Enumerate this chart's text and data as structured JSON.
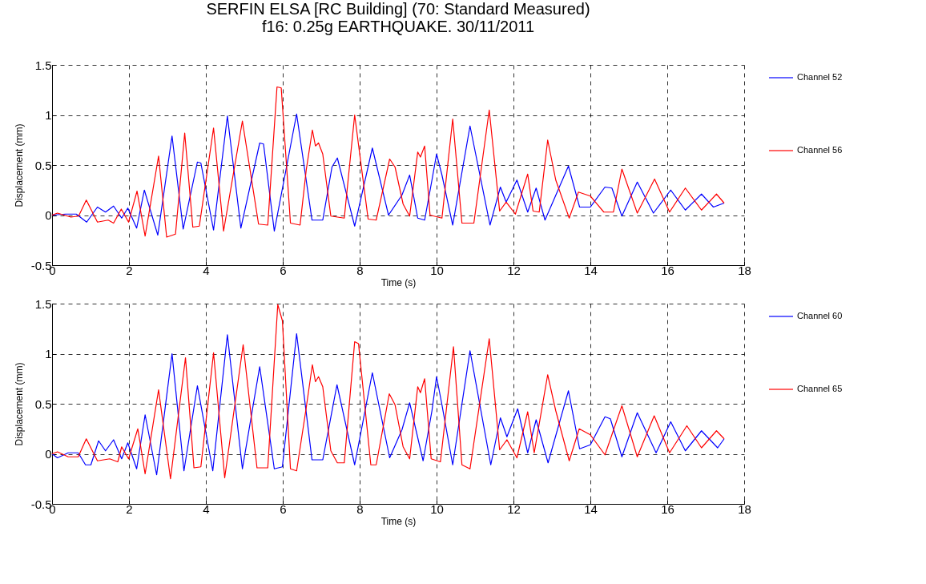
{
  "chart_data": [
    {
      "type": "line",
      "title": "SERFIN ELSA [RC Building] (70: Standard Measured)",
      "subtitle": "f16: 0.25g EARTHQUAKE. 30/11/2011",
      "xlabel": "Time (s)",
      "ylabel": "Displacement (mm)",
      "xlim": [
        0,
        18
      ],
      "xticks": [
        0,
        2,
        4,
        6,
        8,
        10,
        12,
        14,
        16,
        18
      ],
      "ylim": [
        -0.5,
        1.5
      ],
      "yticks": [
        -0.5,
        0,
        0.5,
        1,
        1.5
      ],
      "grid": true,
      "legend": "right",
      "line_style": "solid",
      "series": [
        {
          "name": "Channel 52",
          "color": "#0000ff",
          "x": [
            0,
            0.35,
            0.63,
            0.9,
            1.18,
            1.39,
            1.6,
            1.81,
            1.97,
            2.2,
            2.4,
            2.75,
            3.12,
            3.41,
            3.78,
            3.87,
            4.2,
            4.56,
            4.91,
            5.4,
            5.5,
            5.78,
            6.36,
            6.76,
            7.04,
            7.28,
            7.42,
            7.87,
            8.33,
            8.75,
            9.1,
            9.3,
            9.51,
            9.69,
            9.88,
            10,
            10.14,
            10.42,
            10.87,
            11.39,
            11.66,
            11.81,
            12.09,
            12.37,
            12.59,
            12.82,
            13.43,
            13.72,
            14,
            14.38,
            14.56,
            14.82,
            15.22,
            15.64,
            16.09,
            16.47,
            16.89,
            17.2,
            17.48
          ],
          "values": [
            0,
            0.01,
            0.01,
            -0.07,
            0.08,
            0.03,
            0.09,
            -0.03,
            0.07,
            -0.13,
            0.25,
            -0.2,
            0.79,
            -0.14,
            0.53,
            0.52,
            -0.15,
            0.99,
            -0.13,
            0.72,
            0.71,
            -0.16,
            1.01,
            -0.05,
            -0.05,
            0.48,
            0.57,
            -0.11,
            0.67,
            0,
            0.2,
            0.4,
            -0.03,
            -0.05,
            0.35,
            0.61,
            0.4,
            -0.1,
            0.89,
            -0.1,
            0.28,
            0.13,
            0.35,
            0.03,
            0.27,
            -0.05,
            0.49,
            0.08,
            0.08,
            0.28,
            0.27,
            -0.01,
            0.33,
            0.02,
            0.25,
            0.05,
            0.21,
            0.08,
            0.12
          ]
        },
        {
          "name": "Channel 56",
          "color": "#ff0000",
          "x": [
            0,
            0.14,
            0.49,
            0.69,
            0.89,
            1.18,
            1.46,
            1.6,
            1.8,
            1.99,
            2.21,
            2.42,
            2.77,
            2.98,
            3.21,
            3.45,
            3.66,
            3.83,
            4.2,
            4.46,
            4.95,
            5.37,
            5.61,
            5.85,
            5.96,
            6.2,
            6.45,
            6.61,
            6.77,
            6.85,
            6.93,
            7.04,
            7.25,
            7.6,
            7.87,
            8.22,
            8.43,
            8.78,
            8.92,
            9.13,
            9.3,
            9.51,
            9.58,
            9.69,
            9.83,
            10.14,
            10.42,
            10.66,
            10.97,
            11.37,
            11.64,
            11.81,
            12.05,
            12.37,
            12.51,
            12.67,
            12.89,
            13.1,
            13.45,
            13.69,
            14,
            14.35,
            14.6,
            14.82,
            15.22,
            15.67,
            16.06,
            16.47,
            16.89,
            17.28,
            17.48
          ],
          "values": [
            0,
            0.02,
            -0.02,
            -0.01,
            0.15,
            -0.07,
            -0.05,
            -0.08,
            0.06,
            -0.07,
            0.24,
            -0.21,
            0.59,
            -0.22,
            -0.19,
            0.82,
            -0.12,
            -0.11,
            0.87,
            -0.16,
            0.94,
            -0.09,
            -0.1,
            1.28,
            1.27,
            -0.08,
            -0.1,
            0.45,
            0.85,
            0.69,
            0.72,
            0.61,
            -0.01,
            -0.03,
            1,
            -0.04,
            -0.05,
            0.56,
            0.48,
            0.11,
            -0.01,
            0.63,
            0.58,
            0.69,
            0,
            -0.03,
            0.96,
            -0.08,
            -0.08,
            1.05,
            0.04,
            0.13,
            0.01,
            0.41,
            0.04,
            0.03,
            0.75,
            0.35,
            -0.03,
            0.23,
            0.19,
            0.03,
            0.03,
            0.46,
            0.02,
            0.36,
            0.03,
            0.27,
            0.05,
            0.21,
            0.12
          ]
        }
      ]
    },
    {
      "type": "line",
      "xlabel": "Time (s)",
      "ylabel": "Displacement (mm)",
      "xlim": [
        0,
        18
      ],
      "xticks": [
        0,
        2,
        4,
        6,
        8,
        10,
        12,
        14,
        16,
        18
      ],
      "ylim": [
        -0.5,
        1.5
      ],
      "yticks": [
        -0.5,
        0,
        0.5,
        1,
        1.5
      ],
      "grid": true,
      "legend": "right",
      "line_style": "solid",
      "series": [
        {
          "name": "Channel 60",
          "color": "#0000ff",
          "x": [
            0,
            0.14,
            0.42,
            0.68,
            0.87,
            1.01,
            1.21,
            1.39,
            1.6,
            1.81,
            1.97,
            2.2,
            2.42,
            2.72,
            3.12,
            3.43,
            3.78,
            4.18,
            4.56,
            4.95,
            5.4,
            5.78,
            5.99,
            6.36,
            6.76,
            7.04,
            7.41,
            7.87,
            8.33,
            8.78,
            9.1,
            9.3,
            9.65,
            9.88,
            10,
            10.14,
            10.42,
            10.87,
            11.41,
            11.66,
            11.83,
            12.11,
            12.37,
            12.59,
            12.9,
            13.43,
            13.72,
            14,
            14.38,
            14.52,
            14.82,
            15.22,
            15.71,
            16.09,
            16.47,
            16.89,
            17.31,
            17.48
          ],
          "values": [
            0,
            -0.04,
            0.01,
            0.01,
            -0.11,
            -0.11,
            0.13,
            0.03,
            0.14,
            -0.05,
            0.11,
            -0.15,
            0.39,
            -0.21,
            1,
            -0.17,
            0.68,
            -0.17,
            1.19,
            -0.15,
            0.87,
            -0.15,
            -0.13,
            1.2,
            -0.06,
            -0.06,
            0.69,
            -0.11,
            0.81,
            -0.04,
            0.24,
            0.51,
            -0.07,
            0.43,
            0.77,
            0.49,
            -0.11,
            1.03,
            -0.11,
            0.36,
            0.17,
            0.45,
            0.01,
            0.34,
            -0.09,
            0.63,
            0.05,
            0.09,
            0.37,
            0.35,
            -0.03,
            0.41,
            0.01,
            0.32,
            0.03,
            0.23,
            0.06,
            0.15
          ]
        },
        {
          "name": "Channel 65",
          "color": "#ff0000",
          "x": [
            0,
            0.14,
            0.42,
            0.68,
            0.89,
            1.18,
            1.5,
            1.71,
            1.81,
            1.99,
            2.23,
            2.42,
            2.77,
            3.08,
            3.47,
            3.69,
            3.87,
            4.2,
            4.49,
            4.97,
            5.33,
            5.61,
            5.87,
            5.99,
            6.2,
            6.36,
            6.61,
            6.77,
            6.85,
            6.93,
            7.04,
            7.25,
            7.42,
            7.6,
            7.87,
            7.97,
            8.29,
            8.43,
            8.77,
            8.92,
            9.13,
            9.3,
            9.51,
            9.58,
            9.69,
            9.86,
            10.1,
            10.44,
            10.66,
            10.87,
            11.37,
            11.64,
            11.83,
            12.09,
            12.37,
            12.54,
            12.89,
            13.1,
            13.45,
            13.71,
            14,
            14.38,
            14.82,
            15.22,
            15.66,
            16.06,
            16.51,
            16.89,
            17.28,
            17.48
          ],
          "values": [
            0,
            0.02,
            -0.03,
            -0.03,
            0.15,
            -0.07,
            -0.05,
            -0.08,
            0.07,
            -0.05,
            0.25,
            -0.2,
            0.64,
            -0.25,
            0.96,
            -0.14,
            -0.13,
            1.01,
            -0.24,
            1.09,
            -0.14,
            -0.14,
            1.49,
            1.33,
            -0.15,
            -0.17,
            0.46,
            0.89,
            0.72,
            0.77,
            0.67,
            0.03,
            -0.09,
            -0.09,
            1.12,
            1.1,
            -0.11,
            -0.11,
            0.6,
            0.49,
            0.07,
            -0.05,
            0.67,
            0.61,
            0.75,
            -0.05,
            -0.08,
            1.07,
            -0.11,
            -0.15,
            1.15,
            0.04,
            0.14,
            -0.04,
            0.42,
            0.01,
            0.79,
            0.43,
            -0.07,
            0.25,
            0.19,
            -0.01,
            0.48,
            -0.03,
            0.38,
            0.01,
            0.28,
            0.06,
            0.23,
            0.15
          ]
        }
      ]
    }
  ]
}
